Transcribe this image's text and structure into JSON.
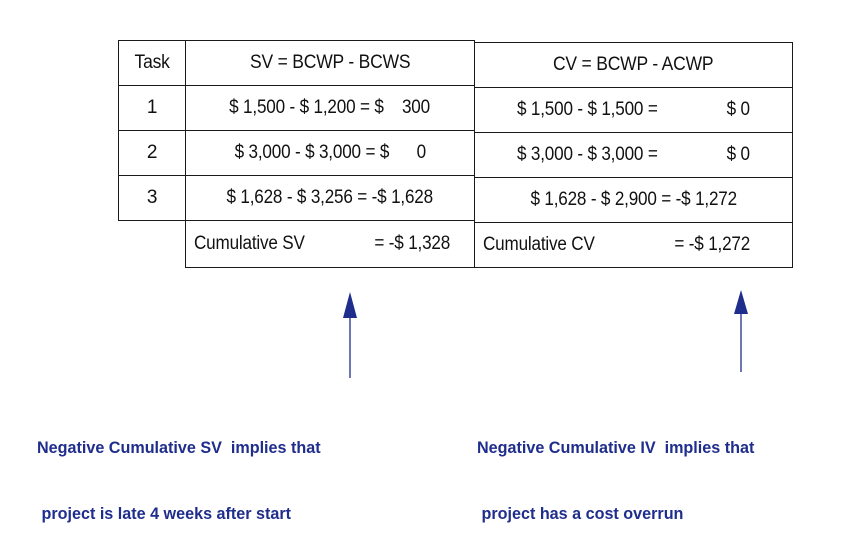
{
  "table": {
    "headers": {
      "task": "Task",
      "sv": "SV = BCWP - BCWS",
      "cv": "CV = BCWP - ACWP"
    },
    "rows": [
      {
        "task": "1",
        "sv": "$ 1,500 - $ 1,200 = $    300",
        "cv_expr": "$ 1,500 - $ 1,500 =",
        "cv_val": "$ 0"
      },
      {
        "task": "2",
        "sv": "$ 3,000 - $ 3,000 = $      0",
        "cv_expr": "$ 3,000 - $ 3,000 =",
        "cv_val": "$ 0"
      },
      {
        "task": "3",
        "sv": "$ 1,628 - $ 3,256 = -$ 1,628",
        "cv": "$ 1,628 - $ 2,900 = -$ 1,272"
      }
    ],
    "cumulative": {
      "sv_label": "Cumulative SV",
      "sv_value": "= -$ 1,328",
      "cv_label": "Cumulative CV",
      "cv_value": "= -$ 1,272"
    }
  },
  "notes": {
    "left_line1": "Negative Cumulative SV  implies that",
    "left_line2": " project is late 4 weeks after start",
    "right_line1": "Negative Cumulative IV  implies that",
    "right_line2": " project has a cost overrun"
  },
  "colors": {
    "note_text": "#1f2d8c",
    "arrow": "#1f2d8c"
  }
}
